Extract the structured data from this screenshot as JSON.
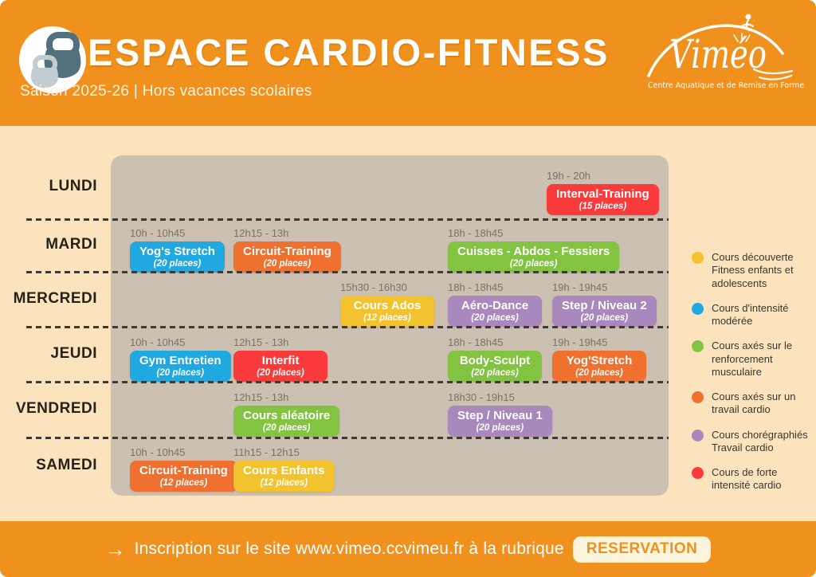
{
  "brand": {
    "name": "Viméo",
    "tagline": "Centre Aquatique et de Remise en Forme",
    "orange": "#F0911D",
    "cream": "#FBE4BD",
    "grid_tan": "#CCC0B2"
  },
  "header": {
    "title": "ESPACE CARDIO-FITNESS",
    "subtitle": "Saison 2025-26 | Hors vacances scolaires"
  },
  "categories": {
    "decouverte": {
      "color": "#F3C32F",
      "label": "Cours découverte Fitness enfants et adolescents"
    },
    "moderee": {
      "color": "#1FA9E0",
      "label": "Cours d'intensité modérée"
    },
    "renforcement": {
      "color": "#82C341",
      "label": "Cours axés sur le renforcement musculaire"
    },
    "cardio": {
      "color": "#F0702F",
      "label": "Cours axés sur un travail cardio"
    },
    "choregraphie": {
      "color": "#A988BE",
      "label": "Cours chorégraphiés Travail cardio"
    },
    "forte": {
      "color": "#FB3B3B",
      "label": "Cours de forte intensité cardio"
    }
  },
  "legend_order": [
    "decouverte",
    "moderee",
    "renforcement",
    "cardio",
    "choregraphie",
    "forte"
  ],
  "schedule": {
    "days": [
      {
        "label": "LUNDI",
        "slots": [
          {
            "time": "19h - 20h",
            "title": "Interval-Training",
            "places": "(15 places)",
            "category": "forte"
          }
        ]
      },
      {
        "label": "MARDI",
        "slots": [
          {
            "time": "10h - 10h45",
            "title": "Yog's Stretch",
            "places": "(20 places)",
            "category": "moderee"
          },
          {
            "time": "12h15 - 13h",
            "title": "Circuit-Training",
            "places": "(20 places)",
            "category": "cardio"
          },
          {
            "time": "18h - 18h45",
            "title": "Cuisses - Abdos - Fessiers",
            "places": "(20 places)",
            "category": "renforcement"
          }
        ]
      },
      {
        "label": "MERCREDI",
        "slots": [
          {
            "time": "15h30 - 16h30",
            "title": "Cours Ados",
            "places": "(12 places)",
            "category": "decouverte"
          },
          {
            "time": "18h - 18h45",
            "title": "Aéro-Dance",
            "places": "(20 places)",
            "category": "choregraphie"
          },
          {
            "time": "19h - 19h45",
            "title": "Step / Niveau 2",
            "places": "(20 places)",
            "category": "choregraphie"
          }
        ]
      },
      {
        "label": "JEUDI",
        "slots": [
          {
            "time": "10h - 10h45",
            "title": "Gym Entretien",
            "places": "(20 places)",
            "category": "moderee"
          },
          {
            "time": "12h15 - 13h",
            "title": "Interfit",
            "places": "(20 places)",
            "category": "forte"
          },
          {
            "time": "18h - 18h45",
            "title": "Body-Sculpt",
            "places": "(20 places)",
            "category": "renforcement"
          },
          {
            "time": "19h - 19h45",
            "title": "Yog'Stretch",
            "places": "(20 places)",
            "category": "cardio"
          }
        ]
      },
      {
        "label": "VENDREDI",
        "slots": [
          {
            "time": "12h15 - 13h",
            "title": "Cours aléatoire",
            "places": "(20 places)",
            "category": "renforcement"
          },
          {
            "time": "18h30 - 19h15",
            "title": "Step / Niveau 1",
            "places": "(20 places)",
            "category": "choregraphie"
          }
        ]
      },
      {
        "label": "SAMEDI",
        "slots": [
          {
            "time": "10h - 10h45",
            "title": "Circuit-Training",
            "places": "(12 places)",
            "category": "cardio"
          },
          {
            "time": "11h15 - 12h15",
            "title": "Cours Enfants",
            "places": "(12 places)",
            "category": "decouverte"
          }
        ]
      }
    ]
  },
  "footer": {
    "arrow": "→",
    "text_prefix": "Inscription sur le site ",
    "url": "www.vimeo.ccvimeu.fr",
    "text_suffix": " à la rubrique",
    "button": "RESERVATION"
  }
}
